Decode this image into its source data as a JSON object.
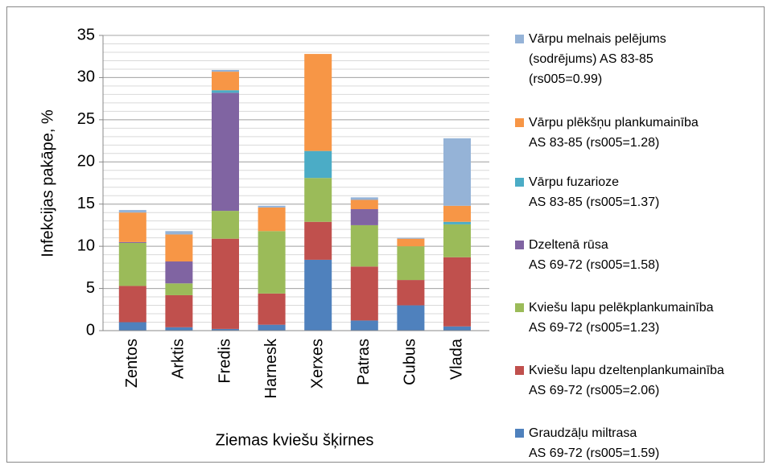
{
  "chart_data": {
    "type": "stacked_bar",
    "y_label": "Infekcijas pakāpe, %",
    "x_label": "Ziemas kviešu šķirnes",
    "categories": [
      "Zentos",
      "Arktis",
      "Fredis",
      "Harnesk",
      "Xerxes",
      "Patras",
      "Cubus",
      "Vlada"
    ],
    "series": [
      {
        "name": "Graudzāļu miltrasa\nAS 69-72 (rs005=1.59)",
        "color": "#4f81bd",
        "values": [
          1.0,
          0.4,
          0.2,
          0.7,
          8.4,
          1.2,
          3.0,
          0.5
        ]
      },
      {
        "name": "Kviešu lapu dzeltenplankumainība\nAS 69-72 (rs005=2.06)",
        "color": "#c0504d",
        "values": [
          4.3,
          3.8,
          10.7,
          3.7,
          4.5,
          6.4,
          3.0,
          8.2
        ]
      },
      {
        "name": "Kviešu lapu pelēkplankumainība\nAS 69-72 (rs005=1.23)",
        "color": "#9bbb59",
        "values": [
          5.1,
          1.4,
          3.3,
          7.4,
          5.2,
          4.9,
          4.0,
          3.9
        ]
      },
      {
        "name": "Dzeltenā rūsa\nAS 69-72 (rs005=1.58)",
        "color": "#8064a2",
        "values": [
          0.1,
          2.6,
          14.0,
          0,
          0,
          1.9,
          0,
          0
        ]
      },
      {
        "name": "Vārpu fuzarioze\nAS 83-85 (rs005=1.37)",
        "color": "#4bacc6",
        "values": [
          0,
          0,
          0.3,
          0,
          3.2,
          0,
          0,
          0.3
        ]
      },
      {
        "name": "Vārpu plēkšņu plankumainība\nAS 83-85 (rs005=1.28)",
        "color": "#f79646",
        "values": [
          3.5,
          3.2,
          2.2,
          2.8,
          11.5,
          1.1,
          0.9,
          1.9
        ]
      },
      {
        "name": "Vārpu melnais pelējums\n(sodrējums) AS 83-85\n(rs005=0.99)",
        "color": "#95b3d7",
        "values": [
          0.3,
          0.4,
          0.2,
          0.2,
          0,
          0.3,
          0.1,
          8.0
        ]
      }
    ],
    "ylim": [
      0,
      35
    ],
    "yticks": [
      0,
      5,
      10,
      15,
      20,
      25,
      30,
      35
    ],
    "grid": true,
    "minor_grid_step": 1,
    "legend": "right"
  }
}
